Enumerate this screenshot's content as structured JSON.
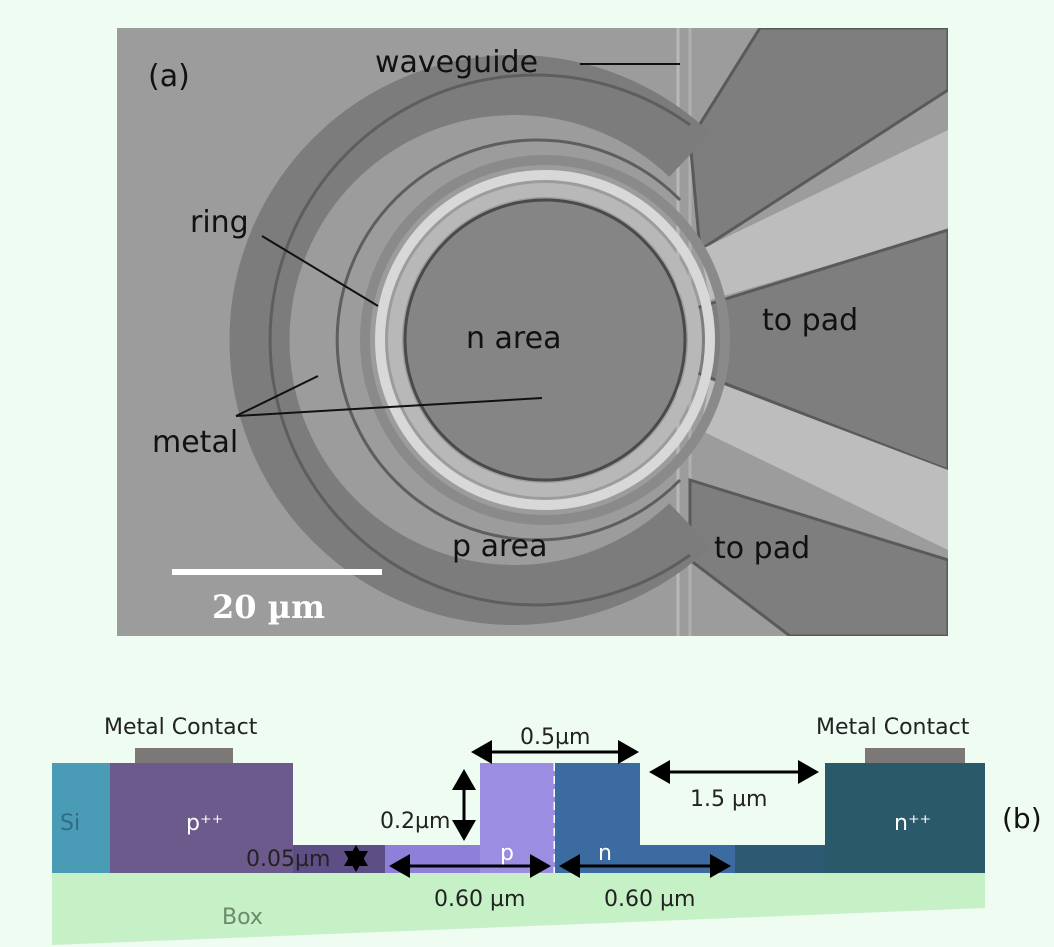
{
  "panel_a": {
    "label": "(a)",
    "waveguide": "waveguide",
    "ring": "ring",
    "metal": "metal",
    "n_area": "n area",
    "p_area": "p area",
    "to_pad_top": "to pad",
    "to_pad_bottom": "to pad",
    "scale_bar": "20 µm"
  },
  "panel_b": {
    "label": "(b)",
    "metal_contact_left": "Metal Contact",
    "metal_contact_right": "Metal Contact",
    "si": "Si",
    "p_plus": "p⁺⁺",
    "n_plus": "n⁺⁺",
    "p": "p",
    "n": "n",
    "box": "Box",
    "dim_rib_width": "0.5µm",
    "dim_rib_height": "0.2µm",
    "dim_gap": "1.5 µm",
    "dim_slab": "0.05µm",
    "dim_p_width": "0.60 µm",
    "dim_n_width": "0.60 µm"
  }
}
